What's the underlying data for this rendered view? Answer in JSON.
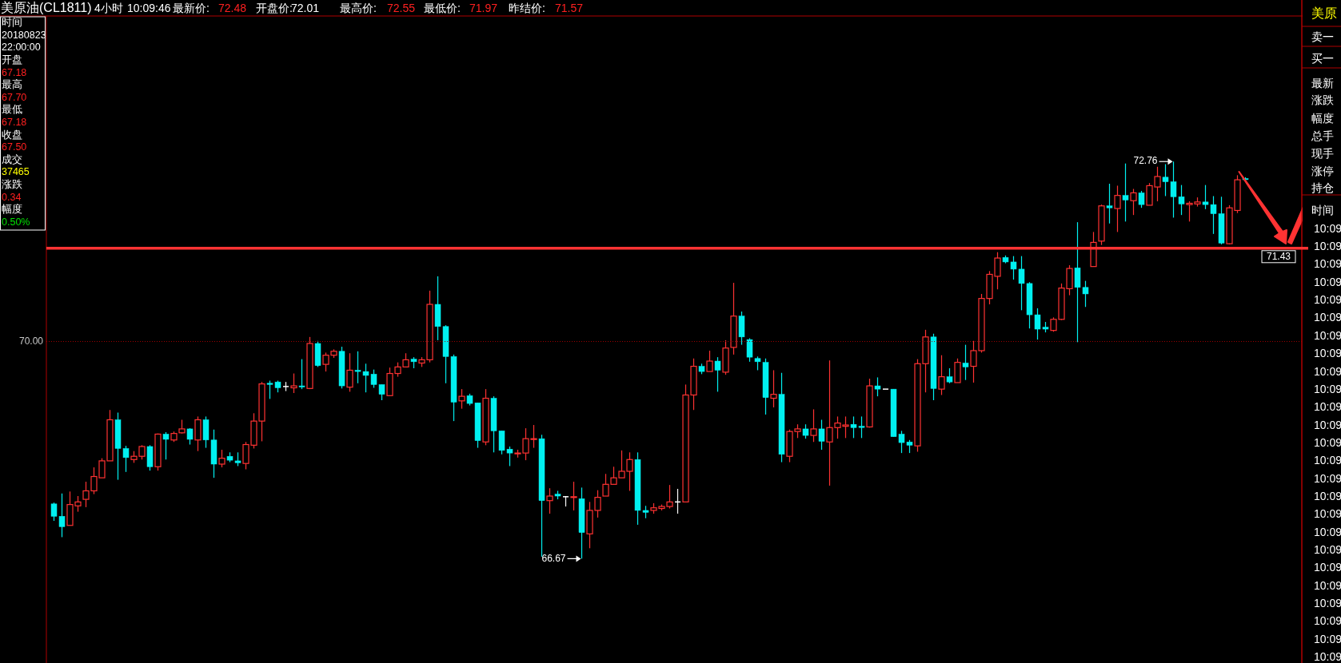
{
  "chart_data": {
    "type": "candlestick",
    "title": "美原油(CL1811)",
    "categories": [
      null,
      null,
      null,
      null,
      null,
      null,
      null,
      null,
      null,
      null,
      null,
      null,
      null,
      null,
      null,
      null,
      null,
      null,
      null,
      null,
      null,
      null,
      null,
      null,
      null,
      null,
      null,
      null,
      null,
      null,
      null,
      null,
      null,
      null,
      null,
      null,
      null,
      null,
      null,
      null,
      null,
      null,
      null,
      null,
      null,
      null,
      null,
      null,
      null,
      null,
      null,
      null,
      null,
      null,
      null,
      null,
      null,
      null,
      null,
      null,
      null,
      null,
      null,
      null,
      null,
      null,
      null,
      null,
      null,
      null,
      null,
      null,
      null,
      null,
      null,
      null,
      null,
      null,
      null,
      null,
      null,
      null,
      null,
      null,
      null,
      null,
      null,
      null,
      null,
      null,
      null,
      null,
      null,
      null,
      null,
      null,
      null,
      null,
      null,
      null,
      null,
      null,
      null,
      null,
      null,
      null,
      null,
      null,
      null,
      null,
      null,
      null,
      null,
      null,
      null,
      null,
      null,
      null,
      null,
      null,
      null,
      null,
      null,
      null,
      null,
      null,
      null,
      null,
      null,
      null,
      null,
      null,
      null,
      null,
      null,
      null,
      null,
      null,
      null,
      null,
      null,
      null,
      null,
      null,
      null,
      null,
      null,
      null,
      null,
      null
    ],
    "ohlc": [
      [
        67.51,
        67.53,
        67.25,
        67.32
      ],
      [
        67.32,
        67.67,
        67.0,
        67.16
      ],
      [
        67.18,
        67.7,
        67.18,
        67.5
      ],
      [
        67.48,
        67.63,
        67.39,
        67.54
      ],
      [
        67.58,
        67.85,
        67.46,
        67.71
      ],
      [
        67.71,
        68.07,
        67.66,
        67.93
      ],
      [
        67.91,
        68.21,
        67.91,
        68.17
      ],
      [
        68.17,
        68.95,
        68.17,
        68.8
      ],
      [
        68.8,
        68.91,
        67.88,
        68.36
      ],
      [
        68.36,
        68.4,
        68.0,
        68.22
      ],
      [
        68.19,
        68.32,
        68.14,
        68.24
      ],
      [
        68.24,
        68.41,
        68.19,
        68.39
      ],
      [
        68.39,
        68.41,
        68.02,
        68.08
      ],
      [
        68.08,
        68.59,
        68.02,
        68.58
      ],
      [
        68.58,
        68.61,
        68.19,
        68.5
      ],
      [
        68.49,
        68.62,
        68.46,
        68.59
      ],
      [
        68.6,
        68.8,
        68.59,
        68.66
      ],
      [
        68.66,
        68.67,
        68.42,
        68.5
      ],
      [
        68.49,
        68.85,
        68.32,
        68.8
      ],
      [
        68.8,
        68.85,
        68.37,
        68.49
      ],
      [
        68.49,
        68.65,
        67.91,
        68.12
      ],
      [
        68.12,
        68.34,
        68.07,
        68.21
      ],
      [
        68.24,
        68.3,
        68.15,
        68.18
      ],
      [
        68.17,
        68.3,
        68.09,
        68.14
      ],
      [
        68.13,
        68.46,
        68.04,
        68.42
      ],
      [
        68.41,
        68.9,
        68.36,
        68.78
      ],
      [
        68.78,
        69.38,
        68.47,
        69.35
      ],
      [
        69.36,
        69.4,
        69.12,
        69.35
      ],
      [
        69.38,
        69.4,
        69.22,
        69.29
      ],
      [
        69.31,
        69.38,
        69.24,
        69.31
      ],
      [
        69.29,
        69.51,
        69.21,
        69.32
      ],
      [
        69.32,
        69.73,
        69.27,
        69.31
      ],
      [
        69.28,
        70.07,
        69.27,
        69.97
      ],
      [
        69.97,
        70.01,
        69.61,
        69.63
      ],
      [
        69.65,
        69.83,
        69.54,
        69.79
      ],
      [
        69.79,
        69.88,
        69.75,
        69.85
      ],
      [
        69.85,
        69.92,
        69.28,
        69.32
      ],
      [
        69.3,
        69.82,
        69.23,
        69.56
      ],
      [
        69.56,
        69.85,
        69.36,
        69.54
      ],
      [
        69.54,
        69.66,
        69.22,
        69.48
      ],
      [
        69.5,
        69.57,
        69.29,
        69.34
      ],
      [
        69.34,
        69.34,
        69.1,
        69.19
      ],
      [
        69.17,
        69.6,
        69.17,
        69.51
      ],
      [
        69.51,
        69.68,
        69.46,
        69.61
      ],
      [
        69.61,
        69.82,
        69.61,
        69.72
      ],
      [
        69.73,
        69.76,
        69.59,
        69.69
      ],
      [
        69.67,
        69.76,
        69.61,
        69.72
      ],
      [
        69.72,
        70.78,
        69.68,
        70.57
      ],
      [
        70.57,
        71.0,
        70.02,
        70.23
      ],
      [
        70.23,
        70.25,
        69.36,
        69.77
      ],
      [
        69.77,
        69.8,
        68.78,
        69.07
      ],
      [
        69.09,
        69.27,
        68.97,
        69.16
      ],
      [
        69.17,
        69.2,
        69.02,
        69.05
      ],
      [
        69.06,
        69.06,
        68.37,
        68.48
      ],
      [
        68.46,
        69.27,
        68.41,
        69.13
      ],
      [
        69.13,
        69.16,
        68.3,
        68.63
      ],
      [
        68.63,
        68.63,
        68.27,
        68.33
      ],
      [
        68.35,
        68.39,
        68.09,
        68.29
      ],
      [
        68.28,
        68.34,
        68.22,
        68.29
      ],
      [
        68.29,
        68.67,
        68.18,
        68.51
      ],
      [
        68.5,
        68.72,
        68.37,
        68.51
      ],
      [
        68.51,
        68.57,
        66.7,
        67.56
      ],
      [
        67.56,
        67.75,
        67.36,
        67.63
      ],
      [
        67.66,
        67.71,
        67.58,
        67.63
      ],
      [
        67.62,
        67.63,
        67.47,
        67.62
      ],
      [
        67.61,
        67.85,
        67.41,
        67.62
      ],
      [
        67.59,
        67.76,
        66.67,
        67.07
      ],
      [
        67.05,
        67.54,
        66.83,
        67.41
      ],
      [
        67.41,
        67.72,
        67.3,
        67.61
      ],
      [
        67.63,
        67.97,
        67.63,
        67.81
      ],
      [
        67.81,
        68.08,
        67.81,
        67.91
      ],
      [
        67.91,
        68.33,
        67.91,
        68.01
      ],
      [
        68.01,
        68.3,
        67.71,
        68.19
      ],
      [
        68.19,
        68.3,
        67.19,
        67.41
      ],
      [
        67.41,
        67.48,
        67.29,
        67.38
      ],
      [
        67.41,
        67.52,
        67.36,
        67.45
      ],
      [
        67.44,
        67.5,
        67.41,
        67.47
      ],
      [
        67.47,
        67.8,
        67.44,
        67.54
      ],
      [
        67.54,
        67.74,
        67.36,
        67.54
      ],
      [
        67.54,
        69.34,
        67.54,
        69.18
      ],
      [
        69.18,
        69.74,
        68.95,
        69.62
      ],
      [
        69.62,
        69.66,
        69.5,
        69.54
      ],
      [
        69.54,
        69.86,
        69.54,
        69.7
      ],
      [
        69.7,
        69.76,
        69.23,
        69.56
      ],
      [
        69.53,
        70.02,
        69.49,
        69.9
      ],
      [
        69.91,
        70.9,
        69.8,
        70.39
      ],
      [
        70.39,
        70.46,
        69.95,
        70.07
      ],
      [
        70.03,
        70.05,
        69.69,
        69.76
      ],
      [
        69.74,
        69.77,
        69.56,
        69.69
      ],
      [
        69.68,
        69.74,
        68.88,
        69.14
      ],
      [
        69.13,
        69.56,
        68.99,
        69.19
      ],
      [
        69.19,
        69.52,
        68.15,
        68.27
      ],
      [
        68.24,
        68.65,
        68.15,
        68.62
      ],
      [
        68.62,
        68.73,
        68.52,
        68.66
      ],
      [
        68.66,
        68.73,
        68.51,
        68.56
      ],
      [
        68.56,
        68.96,
        68.46,
        68.66
      ],
      [
        68.66,
        68.8,
        68.34,
        68.47
      ],
      [
        68.46,
        69.71,
        67.79,
        68.68
      ],
      [
        68.68,
        68.85,
        68.51,
        68.75
      ],
      [
        68.7,
        68.85,
        68.52,
        68.72
      ],
      [
        68.73,
        68.85,
        68.52,
        68.68
      ],
      [
        68.7,
        68.85,
        68.52,
        68.69
      ],
      [
        68.69,
        69.43,
        68.68,
        69.32
      ],
      [
        69.32,
        69.45,
        69.16,
        69.27
      ],
      [
        69.27,
        69.27,
        69.27,
        69.27
      ],
      [
        69.27,
        69.27,
        68.54,
        68.54
      ],
      [
        68.58,
        68.63,
        68.29,
        68.45
      ],
      [
        68.46,
        68.49,
        68.29,
        68.41
      ],
      [
        68.4,
        69.73,
        68.31,
        69.66
      ],
      [
        69.66,
        70.18,
        69.22,
        70.07
      ],
      [
        70.07,
        70.12,
        69.1,
        69.28
      ],
      [
        69.27,
        69.79,
        69.18,
        69.46
      ],
      [
        69.46,
        69.59,
        69.36,
        69.38
      ],
      [
        69.37,
        69.74,
        69.37,
        69.68
      ],
      [
        69.67,
        69.95,
        69.41,
        69.61
      ],
      [
        69.62,
        70.01,
        69.37,
        69.86
      ],
      [
        69.86,
        70.73,
        69.83,
        70.66
      ],
      [
        70.66,
        71.08,
        70.57,
        71.03
      ],
      [
        71.0,
        71.37,
        70.8,
        71.28
      ],
      [
        71.29,
        71.32,
        71.2,
        71.22
      ],
      [
        71.22,
        71.31,
        70.95,
        71.11
      ],
      [
        71.11,
        71.31,
        70.48,
        70.89
      ],
      [
        70.89,
        70.91,
        70.2,
        70.41
      ],
      [
        70.41,
        70.51,
        70.03,
        70.19
      ],
      [
        70.22,
        70.3,
        70.14,
        70.19
      ],
      [
        70.17,
        70.37,
        70.15,
        70.34
      ],
      [
        70.34,
        70.89,
        70.33,
        70.82
      ],
      [
        70.81,
        71.17,
        70.71,
        71.12
      ],
      [
        71.13,
        71.83,
        69.99,
        70.83
      ],
      [
        70.83,
        70.93,
        70.53,
        70.73
      ],
      [
        71.15,
        71.68,
        71.15,
        71.52
      ],
      [
        71.54,
        72.1,
        71.48,
        72.08
      ],
      [
        72.08,
        72.42,
        71.81,
        72.05
      ],
      [
        72.04,
        72.39,
        71.68,
        72.24
      ],
      [
        72.24,
        72.73,
        71.84,
        72.17
      ],
      [
        72.16,
        72.34,
        71.94,
        72.28
      ],
      [
        72.28,
        72.31,
        72.05,
        72.1
      ],
      [
        72.09,
        72.43,
        72.09,
        72.39
      ],
      [
        72.37,
        72.68,
        72.15,
        72.53
      ],
      [
        72.52,
        72.72,
        72.23,
        72.45
      ],
      [
        72.45,
        72.76,
        71.9,
        72.22
      ],
      [
        72.22,
        72.4,
        71.94,
        72.11
      ],
      [
        72.1,
        72.15,
        71.84,
        72.12
      ],
      [
        72.11,
        72.21,
        72.07,
        72.14
      ],
      [
        72.14,
        72.4,
        72.03,
        72.1
      ],
      [
        72.1,
        72.23,
        71.65,
        71.96
      ],
      [
        71.96,
        72.22,
        71.49,
        71.51
      ],
      [
        71.5,
        72.09,
        71.49,
        72.05
      ],
      [
        72.01,
        72.55,
        71.97,
        72.48
      ],
      [
        72.5,
        72.52,
        72.47,
        72.49
      ]
    ],
    "ylim": [
      65.07,
      74.98
    ],
    "ref_lines": [
      {
        "axis": "y",
        "value": 71.43,
        "label": "71.43",
        "color": "#ff3333"
      },
      {
        "axis": "y",
        "value": 70,
        "label": "70.00",
        "color": "#a00000",
        "line_style": "dotted"
      }
    ],
    "annotations": [
      "4小时",
      "10:09:46",
      "最新价:",
      "72.48",
      "开盘价:",
      "72.01",
      "最高价:",
      "72.55",
      "最低价:",
      "71.97",
      "昨结价:",
      "71.57",
      "时间",
      "20180823",
      "22:00:00",
      "开盘",
      "67.18",
      "最高",
      "67.70",
      "最低",
      "67.18",
      "收盘",
      "67.50",
      "成交",
      "37465",
      "涨跌",
      "0.34",
      "幅度",
      "0.50%",
      "72.76",
      "66.67",
      "美原",
      "卖一",
      "买一",
      "最新",
      "涨跌",
      "幅度",
      "总手",
      "现手",
      "涨停",
      "持仓",
      "时间",
      "10:09",
      "10:09",
      "10:09",
      "10:09",
      "10:09",
      "10:09",
      "10:09",
      "10:09",
      "10:09",
      "10:09",
      "10:09",
      "10:09",
      "10:09",
      "10:09",
      "10:09",
      "10:09",
      "10:09",
      "10:09",
      "10:09",
      "10:09",
      "10:09",
      "10:09",
      "10:09",
      "10:09",
      "10:09"
    ]
  }
}
